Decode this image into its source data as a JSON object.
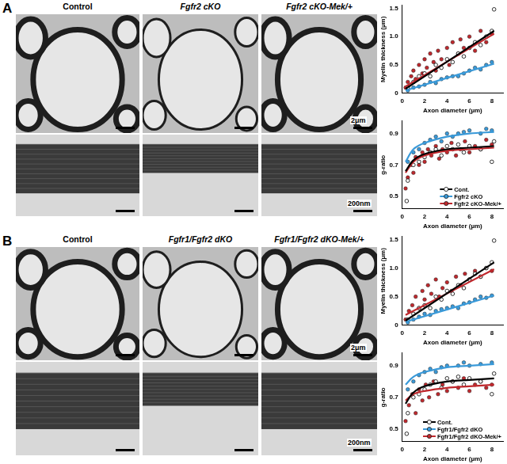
{
  "panels": [
    {
      "label": "A",
      "columns": [
        "Control",
        "Fgfr2 cKO",
        "Fgfr2 cKO-Mek/+"
      ],
      "scale_bars": [
        "2μm",
        "200nm"
      ]
    },
    {
      "label": "B",
      "columns": [
        "Control",
        "Fgfr1/Fgfr2 dKO",
        "Fgfr1/Fgfr2 dKO-Mek/+"
      ],
      "scale_bars": [
        "2μm",
        "200nm"
      ]
    }
  ],
  "chart_data": [
    {
      "type": "scatter",
      "x_label": "Axon diameter (µm)",
      "y_label": "Myelin thickness (µm)",
      "xlim": [
        0,
        9
      ],
      "xticks": [
        0,
        2,
        4,
        6,
        8
      ],
      "ylim": [
        0,
        1.55
      ],
      "yticks": [
        0,
        0.5,
        {
          "value": 1,
          "label": "1.0"
        },
        1.5
      ],
      "grid": false,
      "series": [
        {
          "color": "#000000",
          "marker": "open_circle",
          "x": [
            0.5,
            1,
            1.5,
            2,
            2.5,
            3,
            3.5,
            4,
            4.5,
            5,
            5.5,
            6,
            6.5,
            7,
            7.5,
            8.2,
            8
          ],
          "values": [
            0.1,
            0.2,
            0.3,
            0.35,
            0.3,
            0.5,
            0.45,
            0.6,
            0.55,
            0.7,
            0.65,
            0.8,
            0.9,
            0.85,
            1.0,
            1.48,
            1.1
          ],
          "fit_x": [
            0.3,
            8.2
          ],
          "fit_values": [
            0.08,
            1.1
          ]
        },
        {
          "color": "#3a9ad9",
          "marker": "circle",
          "x": [
            0.5,
            1,
            1.5,
            2,
            2.5,
            3,
            3.5,
            4,
            4.5,
            5,
            5.5,
            6,
            6.5,
            7,
            7.5,
            8
          ],
          "values": [
            0.05,
            0.1,
            0.12,
            0.15,
            0.2,
            0.18,
            0.25,
            0.28,
            0.3,
            0.3,
            0.35,
            0.4,
            0.45,
            0.42,
            0.5,
            0.55
          ],
          "fit_x": [
            0.3,
            8.2
          ],
          "fit_values": [
            0.05,
            0.52
          ]
        },
        {
          "color": "#c0282d",
          "marker": "circle",
          "x": [
            0.3,
            0.5,
            0.8,
            1,
            1.2,
            1.5,
            1.8,
            2,
            2.2,
            2.5,
            2.8,
            3,
            3.2,
            3.5,
            4,
            4.2,
            4.5,
            5,
            5.2,
            5.5,
            6,
            6.5,
            7,
            7.5,
            8
          ],
          "values": [
            0.1,
            0.2,
            0.3,
            0.4,
            0.25,
            0.5,
            0.35,
            0.6,
            0.45,
            0.7,
            0.55,
            0.4,
            0.75,
            0.6,
            0.8,
            0.5,
            0.9,
            0.7,
            0.95,
            0.8,
            1.0,
            0.75,
            1.1,
            0.9,
            1.05
          ],
          "fit_x": [
            0.3,
            8.2
          ],
          "fit_values": [
            0.12,
            1.05
          ]
        }
      ]
    },
    {
      "type": "scatter",
      "x_label": "Axon diameter (µm)",
      "y_label": "g-ratio",
      "xlim": [
        0,
        9
      ],
      "xticks": [
        0,
        2,
        4,
        6,
        8
      ],
      "ylim": [
        0.42,
        0.98
      ],
      "yticks": [
        0.5,
        0.7,
        0.9
      ],
      "grid": false,
      "legend": "lower right",
      "series": [
        {
          "name": "Cont.",
          "color": "#000000",
          "marker": "open_circle",
          "x": [
            0.4,
            0.5,
            1,
            1.5,
            2,
            2.5,
            3,
            3.5,
            4,
            4.5,
            5,
            5.5,
            6,
            7,
            8,
            8.2
          ],
          "values": [
            0.47,
            0.6,
            0.7,
            0.72,
            0.75,
            0.78,
            0.8,
            0.76,
            0.82,
            0.8,
            0.83,
            0.78,
            0.82,
            0.8,
            0.72,
            0.85
          ],
          "fit_x": [
            0.3,
            1,
            2,
            4,
            6,
            8.2
          ],
          "fit_values": [
            0.66,
            0.73,
            0.77,
            0.8,
            0.81,
            0.82
          ]
        },
        {
          "name": "Fgfr2 cKO",
          "color": "#3a9ad9",
          "marker": "circle",
          "x": [
            0.5,
            1,
            1.5,
            2,
            2.5,
            3,
            3.5,
            4,
            4.5,
            5,
            5.5,
            6,
            7,
            7.5,
            8
          ],
          "values": [
            0.72,
            0.78,
            0.8,
            0.84,
            0.86,
            0.88,
            0.85,
            0.9,
            0.88,
            0.9,
            0.91,
            0.92,
            0.9,
            0.93,
            0.92
          ],
          "fit_x": [
            0.3,
            1,
            2,
            4,
            6,
            8.2
          ],
          "fit_values": [
            0.72,
            0.8,
            0.84,
            0.88,
            0.9,
            0.91
          ]
        },
        {
          "name": "Fgfr2 cKO-Mek/+",
          "color": "#c0282d",
          "marker": "circle",
          "x": [
            0.3,
            0.5,
            0.8,
            1,
            1.2,
            1.5,
            1.8,
            2,
            2.3,
            2.6,
            3,
            3.3,
            3.6,
            4,
            4.4,
            4.8,
            5.2,
            5.6,
            6,
            6.5,
            7,
            7.5,
            8
          ],
          "values": [
            0.55,
            0.62,
            0.7,
            0.65,
            0.75,
            0.7,
            0.78,
            0.72,
            0.8,
            0.76,
            0.82,
            0.74,
            0.8,
            0.78,
            0.84,
            0.76,
            0.8,
            0.85,
            0.78,
            0.82,
            0.8,
            0.86,
            0.83
          ],
          "fit_x": [
            0.3,
            1,
            2,
            4,
            6,
            8.2
          ],
          "fit_values": [
            0.65,
            0.72,
            0.76,
            0.79,
            0.8,
            0.81
          ]
        }
      ]
    },
    {
      "type": "scatter",
      "x_label": "Axon diameter (µm)",
      "y_label": "Myelin thickness (µm)",
      "xlim": [
        0,
        9
      ],
      "xticks": [
        0,
        2,
        4,
        6,
        8
      ],
      "ylim": [
        0,
        1.55
      ],
      "yticks": [
        0,
        0.5,
        {
          "value": 1,
          "label": "1.0"
        },
        1.5
      ],
      "grid": false,
      "series": [
        {
          "color": "#000000",
          "marker": "open_circle",
          "x": [
            0.5,
            1,
            1.5,
            2,
            2.5,
            3,
            3.5,
            4,
            4.5,
            5,
            5.5,
            6,
            6.5,
            7,
            7.5,
            8.2,
            8
          ],
          "values": [
            0.1,
            0.2,
            0.3,
            0.35,
            0.3,
            0.5,
            0.45,
            0.6,
            0.55,
            0.7,
            0.65,
            0.8,
            0.9,
            0.85,
            1.0,
            1.48,
            1.1
          ],
          "fit_x": [
            0.3,
            8.2
          ],
          "fit_values": [
            0.08,
            1.1
          ]
        },
        {
          "color": "#3a9ad9",
          "marker": "circle",
          "x": [
            0.5,
            1,
            1.5,
            2,
            2.5,
            3,
            3.5,
            4,
            4.5,
            5,
            5.5,
            6,
            6.5,
            7,
            7.5,
            8
          ],
          "values": [
            0.05,
            0.1,
            0.15,
            0.2,
            0.18,
            0.25,
            0.28,
            0.3,
            0.33,
            0.3,
            0.38,
            0.4,
            0.45,
            0.5,
            0.48,
            0.52
          ],
          "fit_x": [
            0.3,
            8.2
          ],
          "fit_values": [
            0.06,
            0.52
          ]
        },
        {
          "color": "#c0282d",
          "marker": "circle",
          "x": [
            0.3,
            0.6,
            0.9,
            1.2,
            1.5,
            1.8,
            2,
            2.3,
            2.6,
            3,
            3.3,
            3.6,
            4,
            4.4,
            4.8,
            5.2,
            5.6,
            6,
            6.5,
            7,
            7.5,
            8
          ],
          "values": [
            0.1,
            0.25,
            0.35,
            0.5,
            0.3,
            0.6,
            0.45,
            0.7,
            0.55,
            0.8,
            0.5,
            0.65,
            0.75,
            0.6,
            0.85,
            0.7,
            0.9,
            0.8,
            0.95,
            0.85,
            1.0,
            0.95
          ],
          "fit_x": [
            0.3,
            8.2
          ],
          "fit_values": [
            0.18,
            0.98
          ]
        }
      ]
    },
    {
      "type": "scatter",
      "x_label": "Axon diameter (µm)",
      "y_label": "g-ratio",
      "xlim": [
        0,
        9
      ],
      "xticks": [
        0,
        2,
        4,
        6,
        8
      ],
      "ylim": [
        0.42,
        0.98
      ],
      "yticks": [
        0.5,
        0.7,
        0.9
      ],
      "grid": false,
      "legend": "lower right",
      "series": [
        {
          "name": "Cont.",
          "color": "#000000",
          "marker": "open_circle",
          "x": [
            0.4,
            0.5,
            1,
            1.5,
            2,
            2.5,
            3,
            3.5,
            4,
            4.5,
            5,
            5.5,
            6,
            7,
            8,
            8.2
          ],
          "values": [
            0.47,
            0.6,
            0.7,
            0.72,
            0.75,
            0.78,
            0.8,
            0.76,
            0.82,
            0.8,
            0.83,
            0.78,
            0.82,
            0.8,
            0.72,
            0.85
          ],
          "fit_x": [
            0.3,
            1,
            2,
            4,
            6,
            8.2
          ],
          "fit_values": [
            0.66,
            0.73,
            0.77,
            0.8,
            0.81,
            0.82
          ]
        },
        {
          "name": "Fgfr1/Fgfr2 dKO",
          "color": "#3a9ad9",
          "marker": "circle",
          "x": [
            0.5,
            1,
            1.5,
            2,
            2.5,
            3,
            3.5,
            4,
            5,
            5.5,
            6,
            7,
            8
          ],
          "values": [
            0.75,
            0.8,
            0.84,
            0.86,
            0.88,
            0.86,
            0.89,
            0.9,
            0.9,
            0.92,
            0.9,
            0.91,
            0.92
          ],
          "fit_x": [
            0.3,
            1,
            2,
            4,
            6,
            8.2
          ],
          "fit_values": [
            0.78,
            0.83,
            0.86,
            0.89,
            0.9,
            0.91
          ]
        },
        {
          "name": "Fgfr1/Fgfr2 dKO-Mek/+",
          "color": "#c0282d",
          "marker": "circle",
          "x": [
            0.3,
            0.6,
            0.9,
            1.2,
            1.5,
            1.8,
            2.1,
            2.4,
            2.8,
            3.2,
            3.6,
            4,
            4.5,
            5,
            5.5,
            6,
            6.5,
            7,
            7.5,
            8
          ],
          "values": [
            0.55,
            0.65,
            0.72,
            0.6,
            0.75,
            0.68,
            0.78,
            0.7,
            0.8,
            0.72,
            0.78,
            0.74,
            0.8,
            0.76,
            0.82,
            0.74,
            0.78,
            0.8,
            0.76,
            0.78
          ],
          "fit_x": [
            0.3,
            1,
            2,
            4,
            6,
            8.2
          ],
          "fit_values": [
            0.68,
            0.72,
            0.74,
            0.76,
            0.77,
            0.78
          ]
        }
      ]
    }
  ]
}
